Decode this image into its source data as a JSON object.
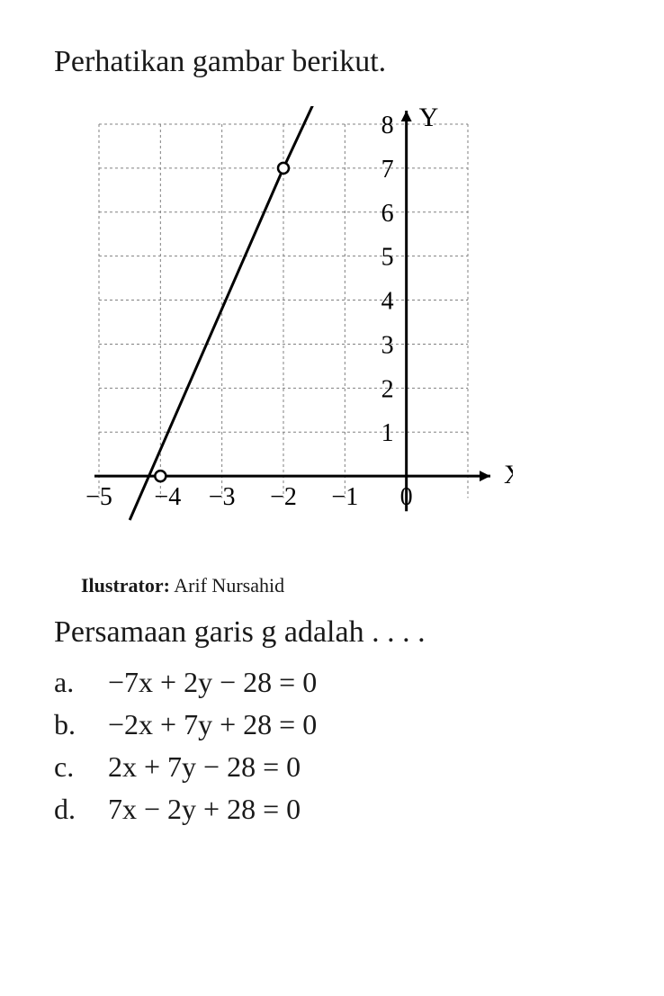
{
  "title": "Perhatikan gambar berikut.",
  "chart": {
    "type": "line",
    "xlim": [
      -5,
      1
    ],
    "ylim": [
      -1,
      8
    ],
    "xticks": [
      -5,
      -4,
      -3,
      -2,
      -1,
      0
    ],
    "yticks": [
      1,
      2,
      3,
      4,
      5,
      6,
      7,
      8
    ],
    "xlabel": "X",
    "ylabel": "Y",
    "background_color": "#ffffff",
    "grid_color": "#808080",
    "grid_style": "dashed",
    "axis_color": "#000000",
    "axis_width": 3,
    "line_color": "#000000",
    "line_width": 3,
    "line_points": [
      {
        "x": -4.5,
        "y": -1
      },
      {
        "x": -2,
        "y": 7
      },
      {
        "x": -1.5,
        "y": 8.5
      }
    ],
    "markers": [
      {
        "x": -4,
        "y": 0
      },
      {
        "x": -2,
        "y": 7
      }
    ],
    "marker_radius": 6,
    "marker_fill": "#ffffff",
    "marker_stroke": "#000000",
    "tick_fontsize": 28,
    "label_fontsize": 30,
    "grid_x": [
      -5,
      -4,
      -3,
      -2,
      -1
    ],
    "grid_y": [
      1,
      2,
      3,
      4,
      5,
      6,
      7,
      8
    ]
  },
  "illustrator": {
    "label": "Ilustrator:",
    "name": "Arif Nursahid"
  },
  "question": "Persamaan garis g adalah . . . .",
  "options": [
    {
      "letter": "a.",
      "text": "−7x + 2y − 28 = 0"
    },
    {
      "letter": "b.",
      "text": "−2x + 7y + 28 = 0"
    },
    {
      "letter": "c.",
      "text": "2x + 7y − 28 = 0"
    },
    {
      "letter": "d.",
      "text": "7x − 2y + 28 = 0"
    }
  ]
}
